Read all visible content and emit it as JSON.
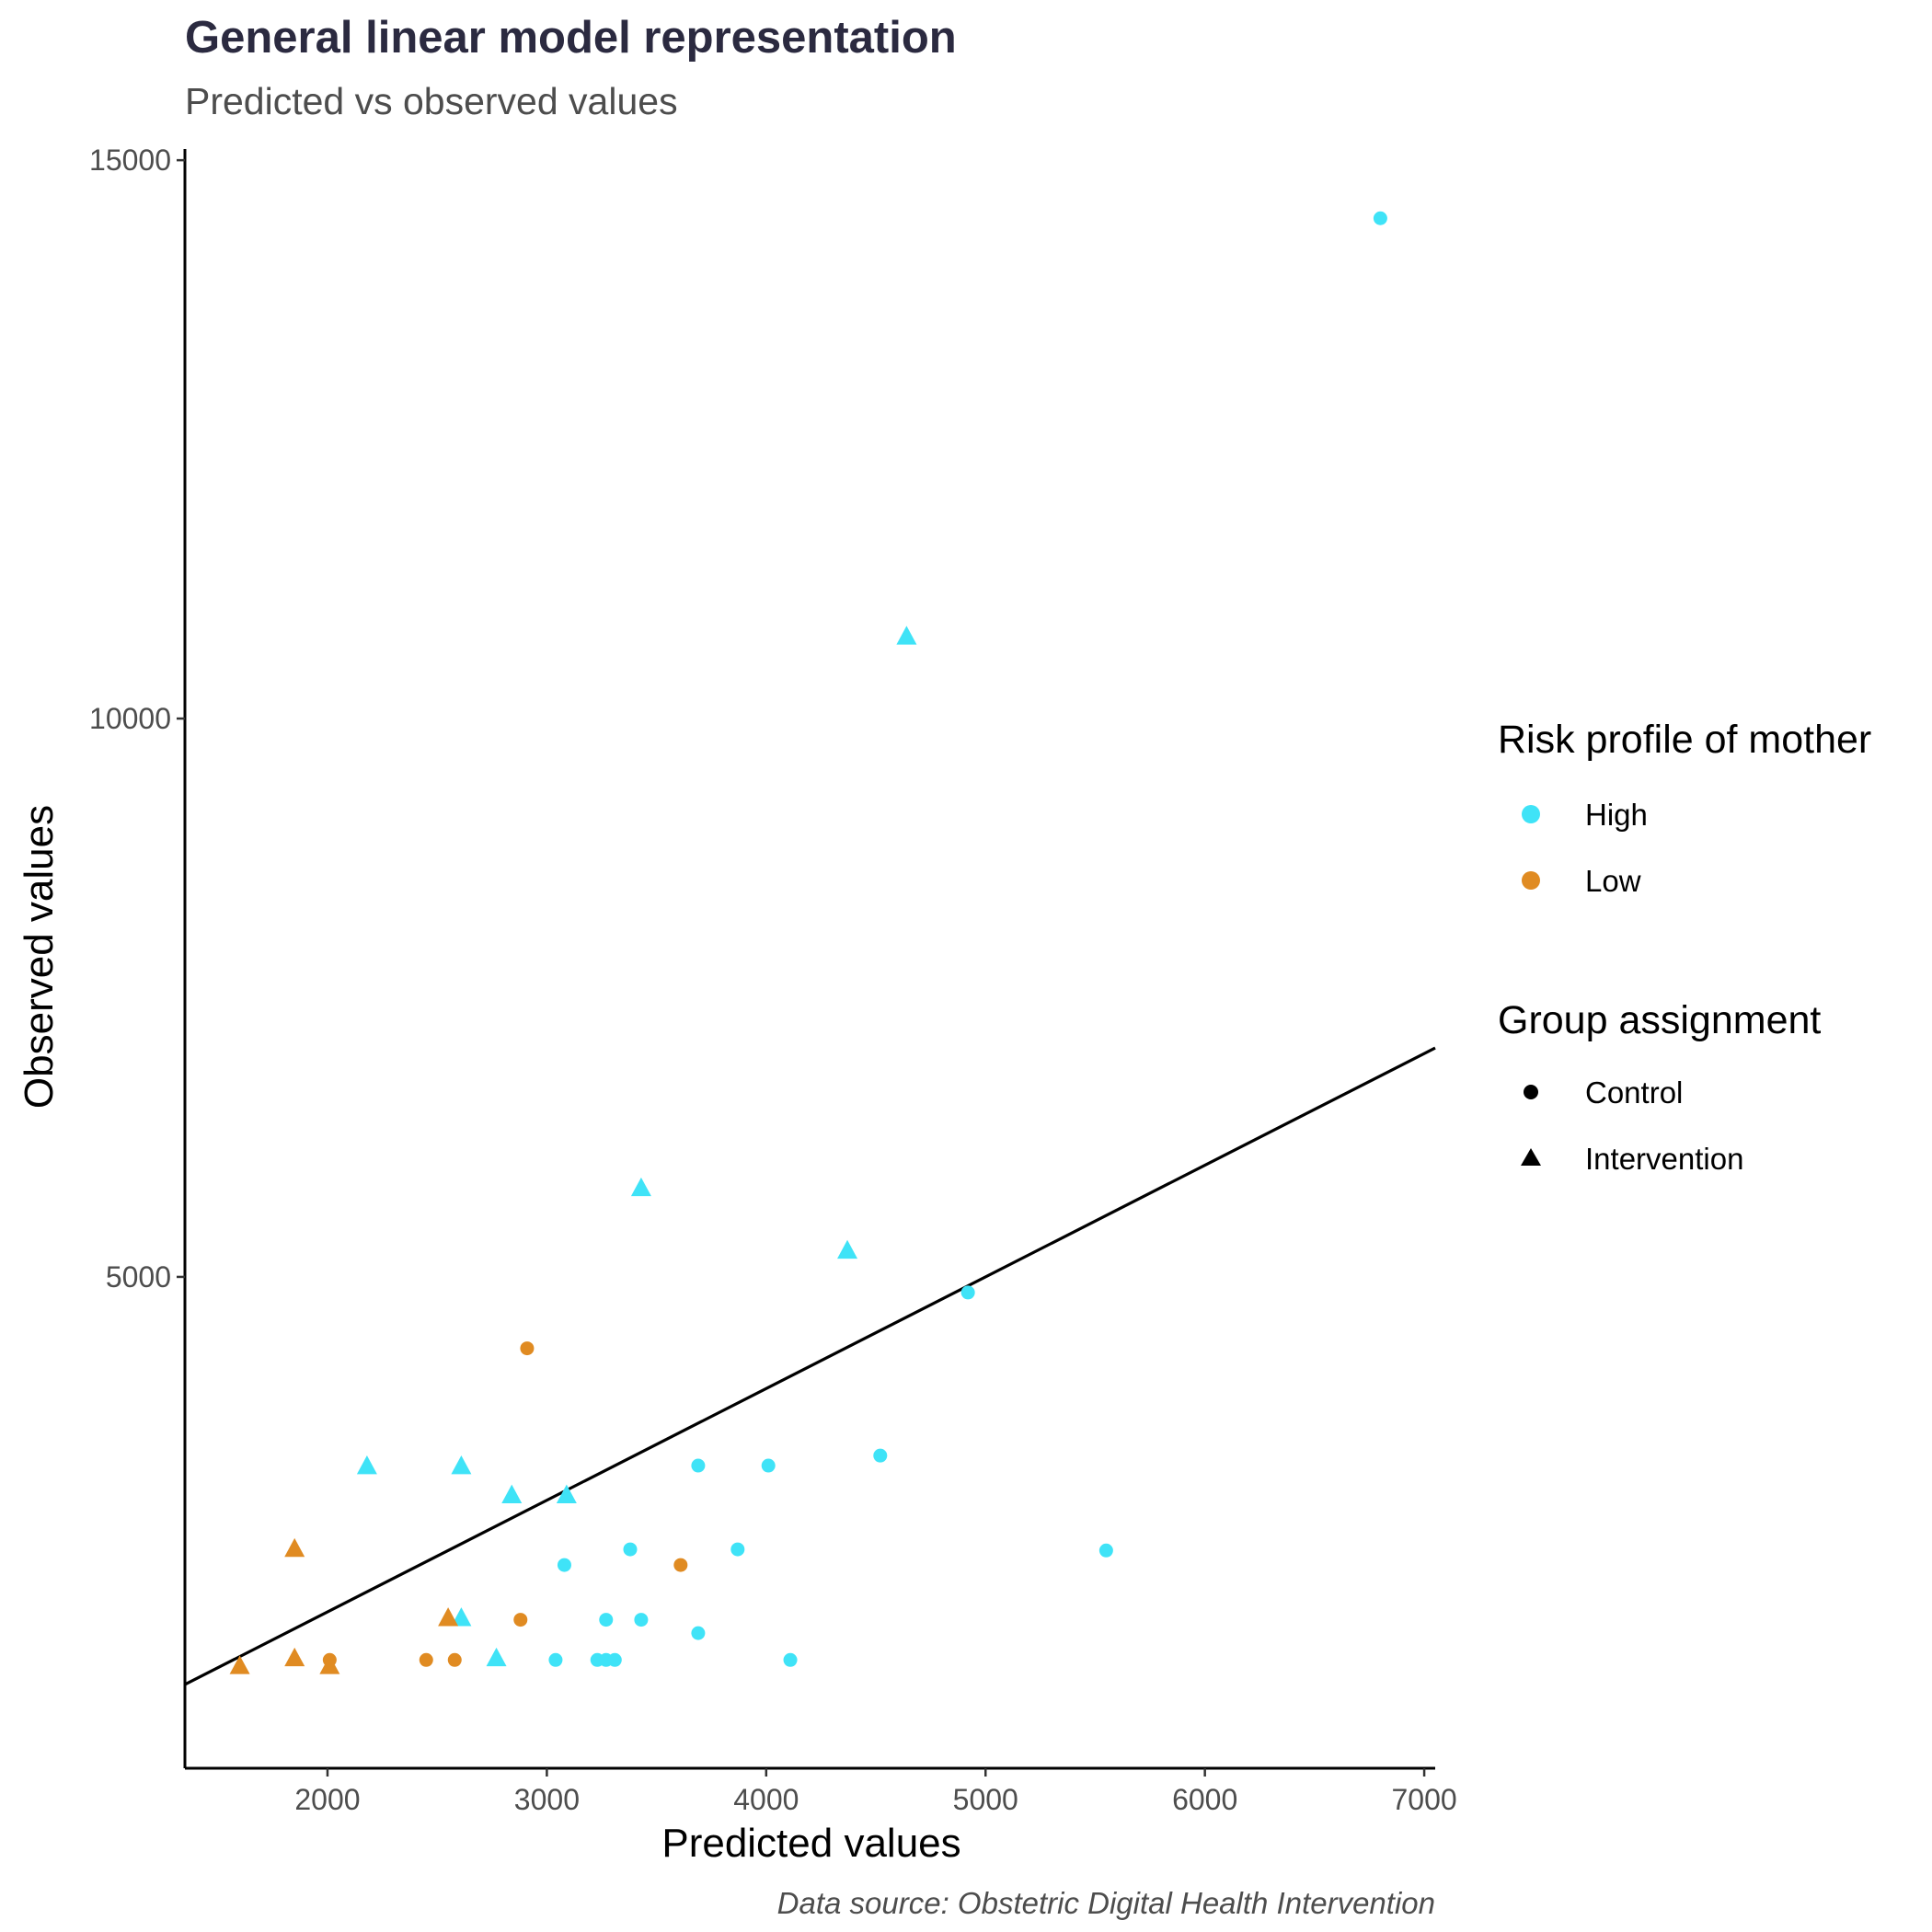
{
  "chart_data": {
    "type": "scatter",
    "title": "General linear model representation",
    "subtitle": "Predicted vs observed values",
    "xlabel": "Predicted values",
    "ylabel": "Observed values",
    "caption": "Data source: Obstetric Digital Health Intervention",
    "xlim": [
      1350,
      7050
    ],
    "ylim": [
      600,
      15100
    ],
    "x_ticks": [
      2000,
      3000,
      4000,
      5000,
      6000,
      7000
    ],
    "y_ticks": [
      5000,
      10000,
      15000
    ],
    "grid": false,
    "reference_line": {
      "intercept": 0,
      "slope": 1
    },
    "colors": {
      "High": "#3fe3f7",
      "Low": "#e08b22"
    },
    "legend": {
      "placement": "right",
      "color": {
        "title": "Risk profile of mother",
        "items": [
          "High",
          "Low"
        ]
      },
      "shape": {
        "title": "Group assignment",
        "items": [
          "Control",
          "Intervention"
        ]
      }
    },
    "series": [
      {
        "risk": "High",
        "group": "Control",
        "points": [
          [
            6800,
            14480
          ],
          [
            4920,
            4860
          ],
          [
            5550,
            2550
          ],
          [
            4520,
            3400
          ],
          [
            4010,
            3310
          ],
          [
            3690,
            3310
          ],
          [
            3870,
            2560
          ],
          [
            3380,
            2560
          ],
          [
            3080,
            2420
          ],
          [
            3270,
            1930
          ],
          [
            3430,
            1930
          ],
          [
            3690,
            1810
          ],
          [
            4110,
            1570
          ],
          [
            3040,
            1570
          ],
          [
            3230,
            1570
          ],
          [
            3270,
            1570
          ],
          [
            3310,
            1570
          ]
        ]
      },
      {
        "risk": "High",
        "group": "Intervention",
        "points": [
          [
            4640,
            10740
          ],
          [
            3430,
            5800
          ],
          [
            4370,
            5240
          ],
          [
            2180,
            3310
          ],
          [
            2610,
            3310
          ],
          [
            2840,
            3050
          ],
          [
            3090,
            3050
          ],
          [
            2610,
            1950
          ],
          [
            2770,
            1590
          ]
        ]
      },
      {
        "risk": "Low",
        "group": "Control",
        "points": [
          [
            2910,
            4360
          ],
          [
            3610,
            2420
          ],
          [
            2880,
            1930
          ],
          [
            2010,
            1570
          ],
          [
            2450,
            1570
          ],
          [
            2580,
            1570
          ]
        ]
      },
      {
        "risk": "Low",
        "group": "Intervention",
        "points": [
          [
            1850,
            2570
          ],
          [
            2550,
            1950
          ],
          [
            1850,
            1590
          ],
          [
            1600,
            1520
          ],
          [
            2010,
            1520
          ]
        ]
      }
    ]
  }
}
